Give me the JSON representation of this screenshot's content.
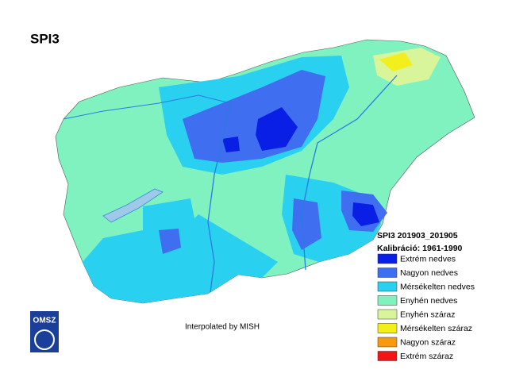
{
  "title": "SPI3",
  "legend": {
    "title": "SPI3 201903_201905",
    "subtitle": "Kalibráció: 1961-1990",
    "items": [
      {
        "label": "Extrém nedves",
        "color": "#0a1fe6"
      },
      {
        "label": "Nagyon nedves",
        "color": "#3f6ff0"
      },
      {
        "label": "Mérsékelten nedves",
        "color": "#2ad0f0"
      },
      {
        "label": "Enyhén nedves",
        "color": "#7ff2c0"
      },
      {
        "label": "Enyhén száraz",
        "color": "#d8f59a"
      },
      {
        "label": "Mérsékelten száraz",
        "color": "#f2ef1c"
      },
      {
        "label": "Nagyon száraz",
        "color": "#f79a10"
      },
      {
        "label": "Extrém száraz",
        "color": "#f51414"
      }
    ]
  },
  "credit": "Interpolated by MISH",
  "logo": "OMSZ"
}
